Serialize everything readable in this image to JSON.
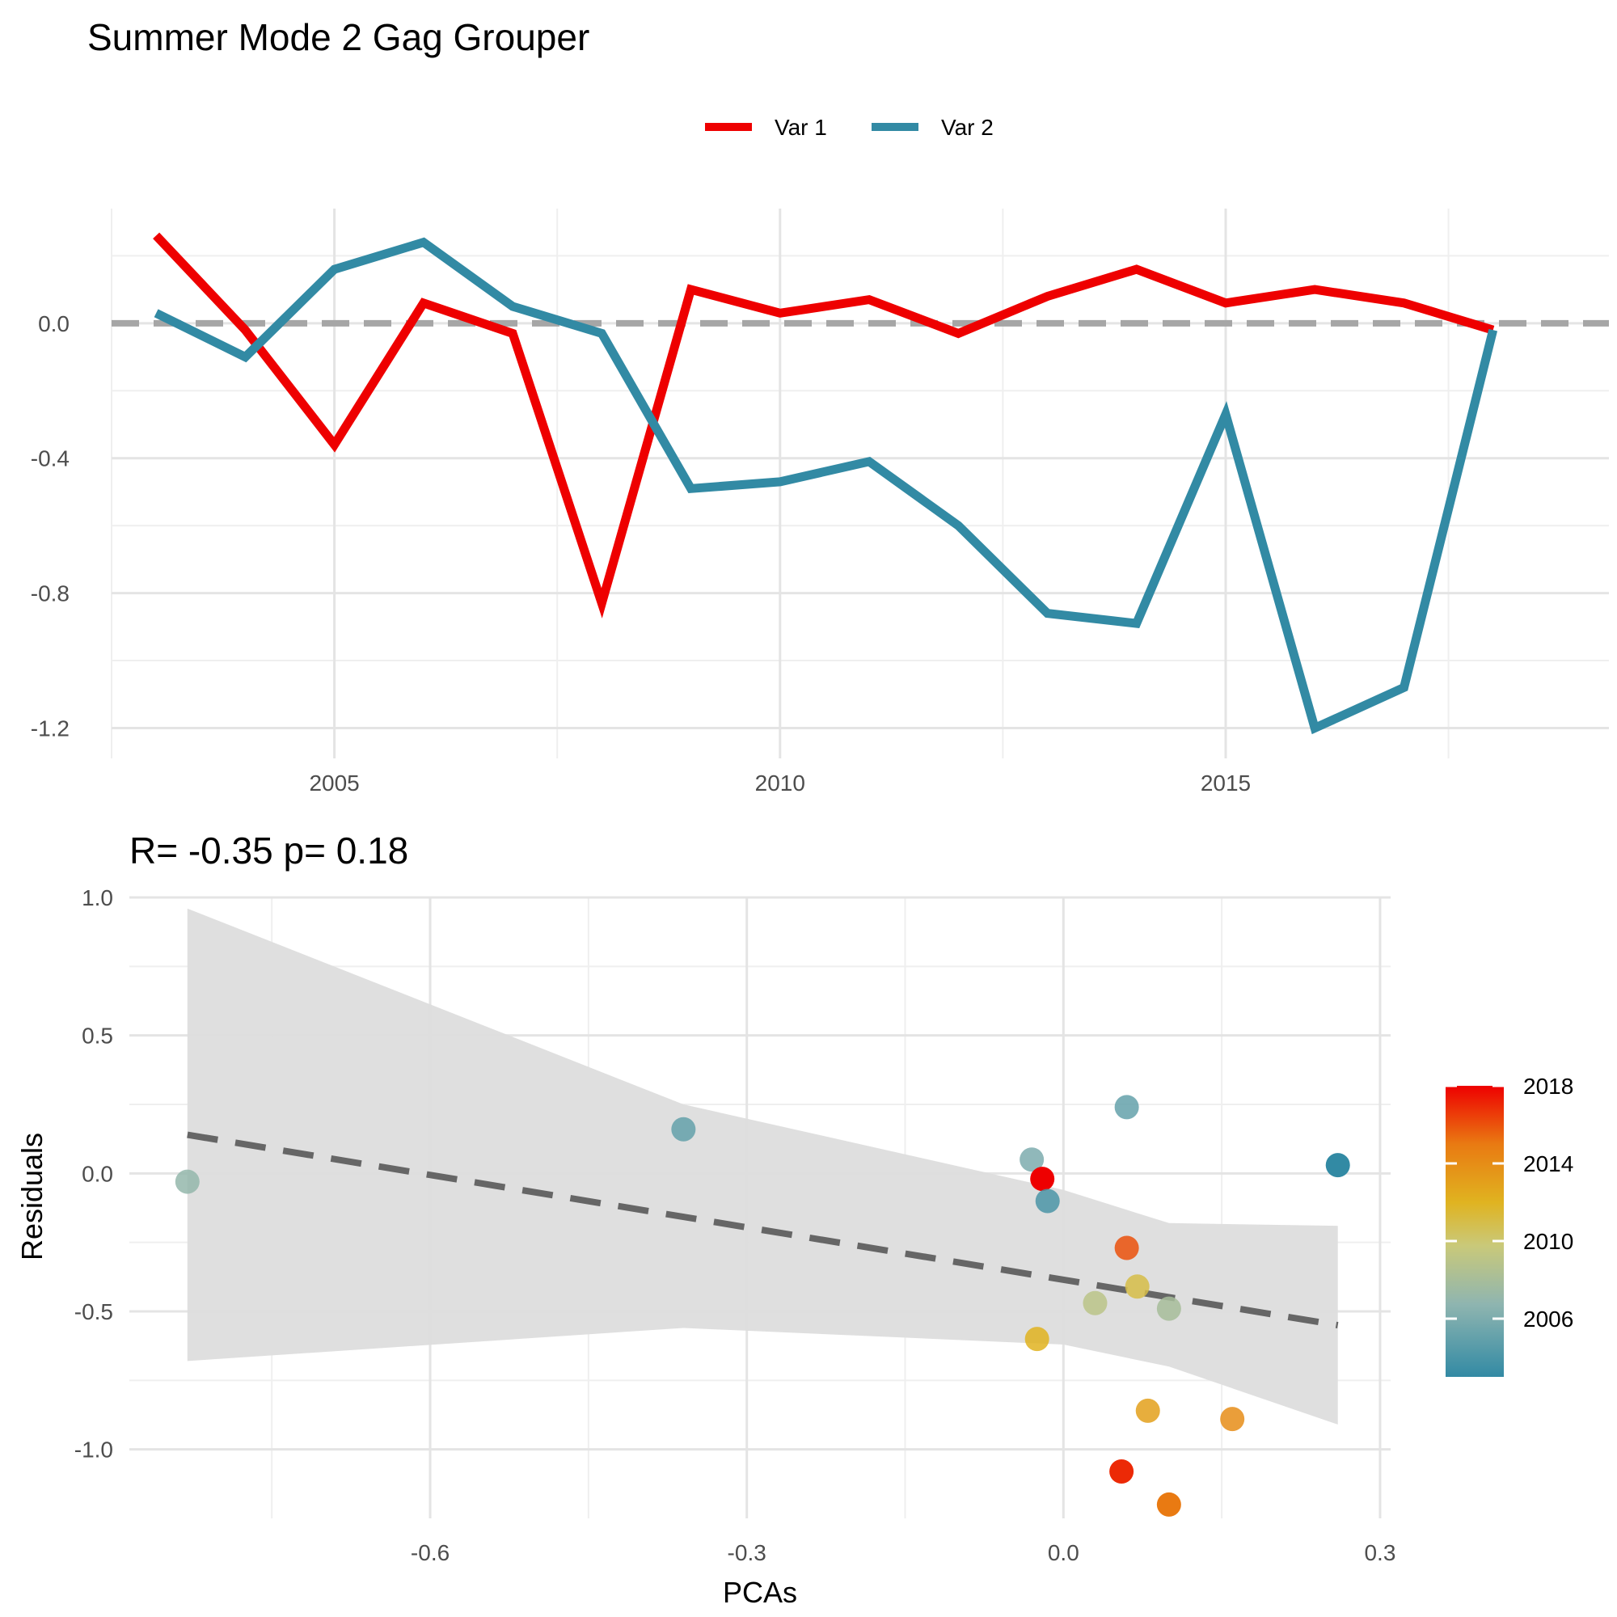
{
  "title": "Summer Mode 2 Gag Grouper",
  "colors": {
    "var1": "#ee0000",
    "var2": "#328aa4",
    "zero_line": "#a6a6a6",
    "fit_line": "#666666",
    "ribbon": "#dddddd"
  },
  "chart_data": [
    {
      "type": "line",
      "legend": {
        "position": "top",
        "entries": [
          "Var 1",
          "Var 2"
        ]
      },
      "x_ticks": [
        "2005",
        "2010",
        "2015"
      ],
      "y_ticks": [
        "0.0",
        "-0.4",
        "-0.8",
        "-1.2"
      ],
      "xlim": [
        2002.5,
        2019.3
      ],
      "ylim": [
        -1.29,
        0.34
      ],
      "grid": true,
      "x": [
        2003,
        2004,
        2005,
        2006,
        2007,
        2008,
        2009,
        2010,
        2011,
        2012,
        2013,
        2014,
        2015,
        2016,
        2017,
        2018
      ],
      "series": [
        {
          "name": "Var 1",
          "color": "#ee0000",
          "values": [
            0.26,
            -0.02,
            -0.36,
            0.06,
            -0.03,
            -0.83,
            0.1,
            0.03,
            0.07,
            -0.03,
            0.08,
            0.16,
            0.06,
            0.1,
            0.06,
            -0.02
          ]
        },
        {
          "name": "Var 2",
          "color": "#328aa4",
          "values": [
            0.03,
            -0.1,
            0.16,
            0.24,
            0.05,
            -0.03,
            -0.49,
            -0.47,
            -0.41,
            -0.6,
            -0.86,
            -0.89,
            -0.27,
            -1.2,
            -1.08,
            -0.02
          ]
        }
      ],
      "reference_line": {
        "y": 0,
        "style": "dashed"
      }
    },
    {
      "type": "scatter",
      "subtitle": "R= -0.35  p= 0.18",
      "xlabel": "PCAs",
      "ylabel": "Residuals",
      "x_ticks": [
        "-0.6",
        "-0.3",
        "0.0",
        "0.3"
      ],
      "y_ticks": [
        "1.0",
        "0.5",
        "0.0",
        "-0.5",
        "-1.0"
      ],
      "xlim": [
        -0.885,
        0.31
      ],
      "ylim": [
        -1.25,
        1.0
      ],
      "grid": true,
      "colorbar": {
        "labels": [
          "2018",
          "2014",
          "2010",
          "2006"
        ],
        "range": [
          2003,
          2018
        ],
        "position": "right"
      },
      "points": [
        {
          "x": -0.83,
          "y": -0.03,
          "year": 2007
        },
        {
          "x": -0.36,
          "y": 0.16,
          "year": 2005
        },
        {
          "x": -0.03,
          "y": 0.05,
          "year": 2006
        },
        {
          "x": 0.06,
          "y": 0.24,
          "year": 2005
        },
        {
          "x": -0.02,
          "y": -0.02,
          "year": 2018
        },
        {
          "x": -0.015,
          "y": -0.1,
          "year": 2004
        },
        {
          "x": 0.26,
          "y": 0.03,
          "year": 2003
        },
        {
          "x": 0.06,
          "y": -0.27,
          "year": 2016
        },
        {
          "x": 0.07,
          "y": -0.41,
          "year": 2011
        },
        {
          "x": 0.03,
          "y": -0.47,
          "year": 2009
        },
        {
          "x": 0.1,
          "y": -0.49,
          "year": 2008
        },
        {
          "x": -0.025,
          "y": -0.6,
          "year": 2012
        },
        {
          "x": 0.08,
          "y": -0.86,
          "year": 2013
        },
        {
          "x": 0.16,
          "y": -0.89,
          "year": 2014
        },
        {
          "x": 0.055,
          "y": -1.08,
          "year": 2017
        },
        {
          "x": 0.1,
          "y": -1.2,
          "year": 2015
        }
      ],
      "fit_line": {
        "x": [
          -0.83,
          0.26
        ],
        "y": [
          0.14,
          -0.55
        ],
        "style": "dashed"
      },
      "confidence_band": {
        "x": [
          -0.83,
          -0.36,
          0.0,
          0.1,
          0.26
        ],
        "upper": [
          0.96,
          0.25,
          -0.06,
          -0.18,
          -0.19
        ],
        "lower": [
          -0.68,
          -0.56,
          -0.62,
          -0.7,
          -0.91
        ]
      }
    }
  ]
}
